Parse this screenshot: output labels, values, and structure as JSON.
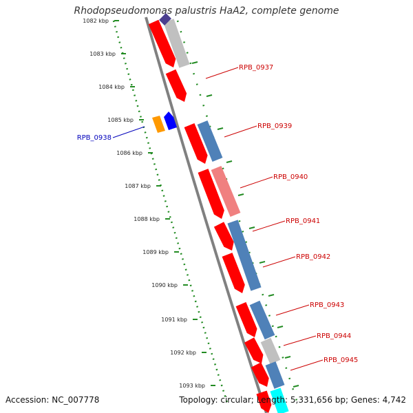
{
  "title": "Rhodopseudomonas palustris HaA2, complete genome",
  "footer": {
    "accession": "Accession: NC_007778",
    "summary": "Topology: circular; Length: 5,331,656 bp; Genes: 4,742"
  },
  "ruler_ticks": [
    "1082 kbp",
    "1083 kbp",
    "1084 kbp",
    "1085 kbp",
    "1086 kbp",
    "1087 kbp",
    "1088 kbp",
    "1089 kbp",
    "1090 kbp",
    "1091 kbp",
    "1092 kbp",
    "1093 kbp"
  ],
  "gene_labels": [
    {
      "text": "RPB_0937",
      "color": "#cc0000"
    },
    {
      "text": "RPB_0939",
      "color": "#cc0000"
    },
    {
      "text": "RPB_0940",
      "color": "#cc0000"
    },
    {
      "text": "RPB_0941",
      "color": "#cc0000"
    },
    {
      "text": "RPB_0942",
      "color": "#cc0000"
    },
    {
      "text": "RPB_0943",
      "color": "#cc0000"
    },
    {
      "text": "RPB_0944",
      "color": "#cc0000"
    },
    {
      "text": "RPB_0945",
      "color": "#cc0000"
    },
    {
      "text": "RPB_0938",
      "color": "#0000bb"
    }
  ],
  "colors": {
    "cds_forward": "#ff0000",
    "blast_blue": "#4f81b8",
    "blast_pink": "#f08080",
    "blast_grey": "#c0c0c0",
    "orange": "#ff9900",
    "blue": "#0000ff",
    "cyan": "#00ffff",
    "backbone": "#808080",
    "ruler": "#228b22"
  }
}
